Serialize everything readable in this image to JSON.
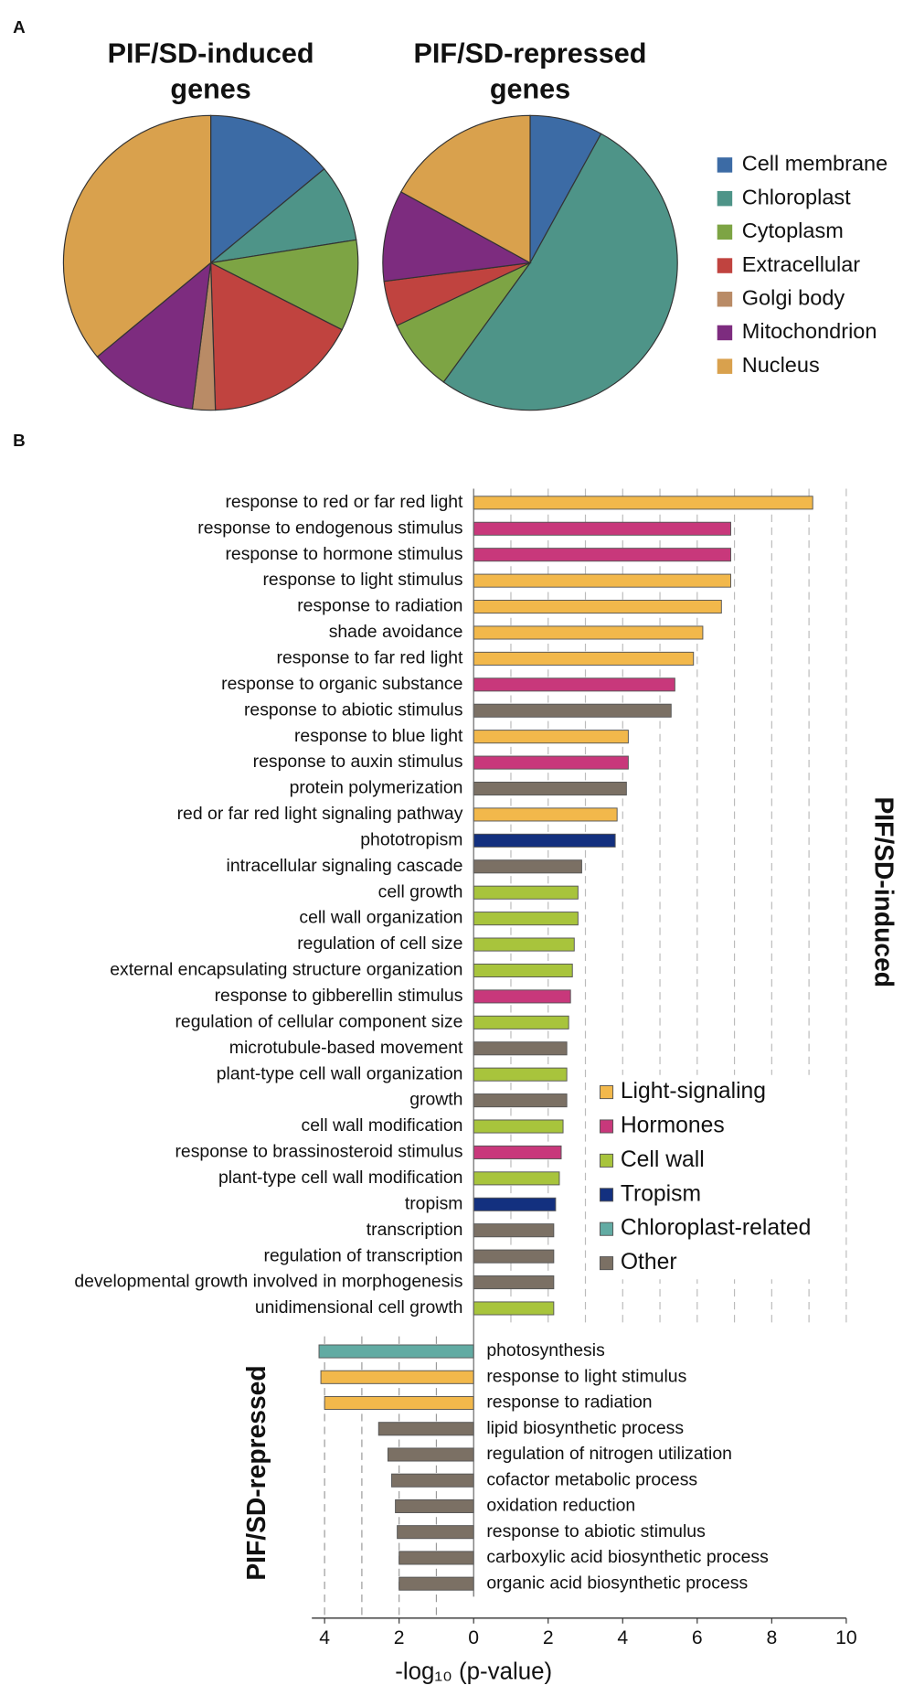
{
  "panels": [
    "A",
    "B"
  ],
  "chart_data": [
    {
      "type": "pie",
      "title": [
        "PIF/SD-induced",
        "genes"
      ],
      "categories": [
        "Cell membrane",
        "Chloroplast",
        "Cytoplasm",
        "Extracellular",
        "Golgi body",
        "Mitochondrion",
        "Nucleus"
      ],
      "colors": [
        "#3C6BA5",
        "#4E9488",
        "#7DA444",
        "#C0433F",
        "#B98B66",
        "#7D2C7F",
        "#D9A14D"
      ],
      "values": [
        14,
        8.5,
        10,
        17,
        2.5,
        12,
        36
      ]
    },
    {
      "type": "pie",
      "title": [
        "PIF/SD-repressed",
        "genes"
      ],
      "values": [
        8,
        52,
        8,
        5,
        0,
        10,
        17
      ]
    },
    {
      "type": "bar",
      "orientation": "horizontal",
      "categories": [
        "response to red or far red light",
        "response to endogenous stimulus",
        "response to hormone stimulus",
        "response to light stimulus",
        "response to radiation",
        "shade avoidance",
        "response to far red light",
        "response to organic substance",
        "response to abiotic stimulus",
        "response to blue light",
        "response to auxin stimulus",
        "protein polymerization",
        "red or far red light signaling pathway",
        "phototropism",
        "intracellular signaling cascade",
        "cell growth",
        "cell wall organization",
        "regulation of cell size",
        "external encapsulating structure organization",
        "response to gibberellin stimulus",
        "regulation of cellular component size",
        "microtubule-based movement",
        "plant-type cell wall organization",
        "growth",
        "cell wall modification",
        "response to brassinosteroid stimulus",
        "plant-type cell wall modification",
        "tropism",
        "transcription",
        "regulation of transcription",
        "developmental growth involved in morphogenesis",
        "unidimensional cell growth",
        "photosynthesis",
        "response to light stimulus",
        "response to radiation",
        "lipid biosynthetic process",
        "regulation of nitrogen utilization",
        "cofactor metabolic process",
        "oxidation reduction",
        "response to abiotic stimulus",
        "carboxylic acid biosynthetic process",
        "organic acid biosynthetic process"
      ],
      "values": [
        9.1,
        6.9,
        6.9,
        6.9,
        6.65,
        6.15,
        5.9,
        5.4,
        5.3,
        4.15,
        4.15,
        4.1,
        3.85,
        3.8,
        2.9,
        2.8,
        2.8,
        2.7,
        2.65,
        2.6,
        2.55,
        2.5,
        2.5,
        2.5,
        2.4,
        2.35,
        2.3,
        2.2,
        2.15,
        2.15,
        2.15,
        2.15,
        -4.15,
        -4.1,
        -4.0,
        -2.55,
        -2.3,
        -2.2,
        -2.1,
        -2.05,
        -2.0,
        -2.0
      ],
      "colors": [
        "#F2B84B",
        "#C8387B",
        "#C8387B",
        "#F2B84B",
        "#F2B84B",
        "#F2B84B",
        "#F2B84B",
        "#C8387B",
        "#7B7064",
        "#F2B84B",
        "#C8387B",
        "#7B7064",
        "#F2B84B",
        "#13307F",
        "#7B7064",
        "#A8C43C",
        "#A8C43C",
        "#A8C43C",
        "#A8C43C",
        "#C8387B",
        "#A8C43C",
        "#7B7064",
        "#A8C43C",
        "#7B7064",
        "#A8C43C",
        "#C8387B",
        "#A8C43C",
        "#13307F",
        "#7B7064",
        "#7B7064",
        "#7B7064",
        "#A8C43C",
        "#62ABA3",
        "#F2B84B",
        "#F2B84B",
        "#7B7064",
        "#7B7064",
        "#7B7064",
        "#7B7064",
        "#7B7064",
        "#7B7064",
        "#7B7064"
      ],
      "legend": [
        {
          "name": "Light-signaling",
          "color": "#F2B84B"
        },
        {
          "name": "Hormones",
          "color": "#C8387B"
        },
        {
          "name": "Cell wall",
          "color": "#A8C43C"
        },
        {
          "name": "Tropism",
          "color": "#13307F"
        },
        {
          "name": "Chloroplast-related",
          "color": "#62ABA3"
        },
        {
          "name": "Other",
          "color": "#7B7064"
        }
      ],
      "section_labels": [
        "PIF/SD-induced",
        "PIF/SD-repressed"
      ],
      "xlabel": "-log₁₀ (p-value)",
      "xlim": [
        -4.4,
        10
      ],
      "xticks": [
        {
          "value": -4,
          "label": "4"
        },
        {
          "value": -2,
          "label": "2"
        },
        0,
        2,
        4,
        6,
        8,
        10
      ],
      "xminorticks": [
        -3,
        -1,
        1,
        3,
        5,
        7,
        9
      ],
      "grid": true
    }
  ]
}
